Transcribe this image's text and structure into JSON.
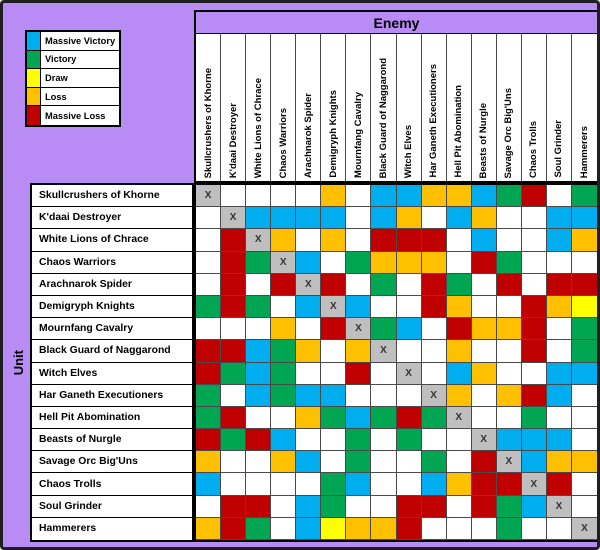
{
  "colors": {
    "MV": "#00AEEF",
    "V": "#00A651",
    "D": "#FFFF00",
    "L": "#FFC000",
    "ML": "#C00000",
    "X": "#BFBFBF",
    "-": "#FFFFFF",
    "frame_purple": "#B98CF5"
  },
  "legend": {
    "items": [
      {
        "code": "MV",
        "label": "Massive Victory"
      },
      {
        "code": "V",
        "label": "Victory"
      },
      {
        "code": "D",
        "label": "Draw"
      },
      {
        "code": "L",
        "label": "Loss"
      },
      {
        "code": "ML",
        "label": "Massive Loss"
      }
    ]
  },
  "table": {
    "enemy_header_label": "Enemy",
    "unit_header_label": "Unit",
    "mirror_cell_text": "X"
  },
  "chart_data": {
    "type": "heatmap",
    "x_axis_label": "Enemy",
    "y_axis_label": "Unit",
    "legend_entries": [
      "Massive Victory",
      "Victory",
      "Draw",
      "Loss",
      "Massive Loss"
    ],
    "code_meanings": {
      "MV": "Massive Victory",
      "V": "Victory",
      "D": "Draw",
      "L": "Loss",
      "ML": "Massive Loss",
      "X": "same unit mirror cell",
      "-": "no result (blank)"
    },
    "x_categories": [
      "Skullcrushers of Khorne",
      "K'daai Destroyer",
      "White Lions of Chrace",
      "Chaos Warriors",
      "Arachnarok Spider",
      "Demigryph Knights",
      "Mournfang Cavalry",
      "Black Guard of Naggarond",
      "Witch Elves",
      "Har Ganeth Executioners",
      "Hell Pit Abomination",
      "Beasts of Nurgle",
      "Savage Orc Big'Uns",
      "Chaos Trolls",
      "Soul Grinder",
      "Hammerers"
    ],
    "y_categories": [
      "Skullcrushers of Khorne",
      "K'daai Destroyer",
      "White Lions of Chrace",
      "Chaos Warriors",
      "Arachnarok Spider",
      "Demigryph Knights",
      "Mournfang Cavalry",
      "Black Guard of Naggarond",
      "Witch Elves",
      "Har Ganeth Executioners",
      "Hell Pit Abomination",
      "Beasts of Nurgle",
      "Savage Orc Big'Uns",
      "Chaos Trolls",
      "Soul Grinder",
      "Hammerers"
    ],
    "values": [
      [
        "X",
        "-",
        "-",
        "-",
        "-",
        "L",
        "-",
        "MV",
        "MV",
        "L",
        "L",
        "MV",
        "V",
        "ML",
        "-",
        "V"
      ],
      [
        "-",
        "X",
        "MV",
        "MV",
        "MV",
        "MV",
        "-",
        "MV",
        "L",
        "-",
        "MV",
        "L",
        "-",
        "-",
        "MV",
        "MV"
      ],
      [
        "-",
        "ML",
        "X",
        "L",
        "-",
        "L",
        "-",
        "ML",
        "ML",
        "ML",
        "-",
        "MV",
        "-",
        "-",
        "MV",
        "L"
      ],
      [
        "-",
        "ML",
        "V",
        "X",
        "MV",
        "-",
        "V",
        "L",
        "L",
        "L",
        "-",
        "ML",
        "V",
        "-",
        "-",
        "-"
      ],
      [
        "-",
        "ML",
        "-",
        "ML",
        "X",
        "ML",
        "-",
        "V",
        "-",
        "ML",
        "V",
        "-",
        "ML",
        "-",
        "ML",
        "ML"
      ],
      [
        "V",
        "ML",
        "V",
        "-",
        "MV",
        "X",
        "MV",
        "-",
        "-",
        "ML",
        "L",
        "-",
        "-",
        "ML",
        "L",
        "D"
      ],
      [
        "-",
        "-",
        "-",
        "L",
        "-",
        "ML",
        "X",
        "V",
        "MV",
        "-",
        "ML",
        "L",
        "L",
        "ML",
        "-",
        "V"
      ],
      [
        "ML",
        "ML",
        "MV",
        "V",
        "L",
        "-",
        "L",
        "X",
        "-",
        "-",
        "L",
        "-",
        "-",
        "ML",
        "-",
        "V"
      ],
      [
        "ML",
        "V",
        "MV",
        "V",
        "-",
        "-",
        "ML",
        "-",
        "X",
        "-",
        "MV",
        "L",
        "-",
        "-",
        "MV",
        "MV"
      ],
      [
        "V",
        "-",
        "MV",
        "V",
        "MV",
        "MV",
        "-",
        "-",
        "-",
        "X",
        "L",
        "-",
        "L",
        "ML",
        "MV",
        "-"
      ],
      [
        "V",
        "ML",
        "-",
        "-",
        "L",
        "V",
        "MV",
        "V",
        "ML",
        "V",
        "X",
        "-",
        "-",
        "V",
        "-",
        "-"
      ],
      [
        "ML",
        "V",
        "ML",
        "MV",
        "-",
        "-",
        "V",
        "-",
        "V",
        "-",
        "-",
        "X",
        "MV",
        "MV",
        "MV",
        "-"
      ],
      [
        "L",
        "-",
        "-",
        "L",
        "MV",
        "-",
        "V",
        "-",
        "-",
        "V",
        "-",
        "ML",
        "X",
        "MV",
        "L",
        "L"
      ],
      [
        "MV",
        "-",
        "-",
        "-",
        "-",
        "V",
        "MV",
        "-",
        "-",
        "MV",
        "L",
        "ML",
        "ML",
        "X",
        "ML",
        "-"
      ],
      [
        "-",
        "ML",
        "ML",
        "-",
        "MV",
        "V",
        "-",
        "-",
        "ML",
        "ML",
        "-",
        "ML",
        "V",
        "MV",
        "X",
        "-"
      ],
      [
        "L",
        "ML",
        "V",
        "-",
        "MV",
        "D",
        "L",
        "L",
        "ML",
        "-",
        "-",
        "-",
        "V",
        "-",
        "-",
        "X"
      ]
    ]
  }
}
